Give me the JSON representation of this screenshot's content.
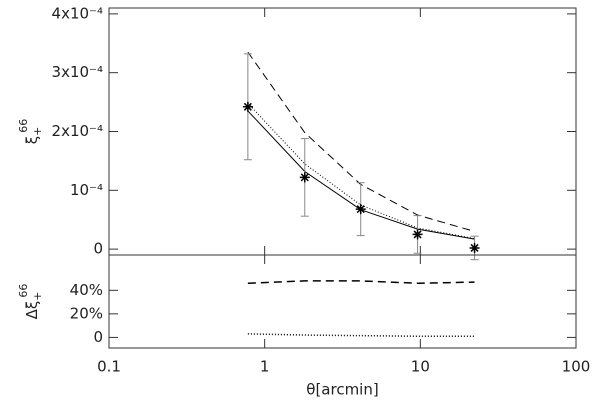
{
  "chart_data": [
    {
      "type": "errorbar-line",
      "log_x": true,
      "ylabel": {
        "symbol": "ξ",
        "sub": "+",
        "sup": "66"
      },
      "xlim": [
        0.1,
        100
      ],
      "xticks": [
        0.1,
        1,
        10,
        100
      ],
      "ylim": [
        -1e-05,
        0.00041
      ],
      "yticks": [
        0,
        {
          "value": 0.0001,
          "label": "10⁻⁴"
        },
        {
          "value": 0.0002,
          "label": "2x10⁻⁴"
        },
        {
          "value": 0.0003,
          "label": "3x10⁻⁴"
        },
        {
          "value": 0.0004,
          "label": "4x10⁻⁴"
        }
      ],
      "x": [
        0.78,
        1.81,
        4.14,
        9.6,
        22.3
      ],
      "points": {
        "color": "#000000",
        "values": [
          0.000242,
          0.000122,
          6.8e-05,
          2.5e-05,
          2e-06
        ],
        "errors": [
          9e-05,
          6.6e-05,
          4.5e-05,
          3.2e-05,
          2e-05
        ]
      },
      "series": [
        {
          "style": "solid",
          "color": "#000000",
          "values": [
            0.000235,
            0.000132,
            6.7e-05,
            3.4e-05,
            1.7e-05
          ]
        },
        {
          "style": "dashed",
          "color": "#000000",
          "values": [
            0.000335,
            0.000198,
            0.00011,
            5.8e-05,
            3e-05
          ]
        },
        {
          "style": "dotted",
          "color": "#000000",
          "values": [
            0.000248,
            0.000145,
            7.5e-05,
            3.6e-05,
            1.8e-05
          ]
        }
      ]
    },
    {
      "type": "line",
      "log_x": true,
      "ylabel": {
        "symbol": "Δξ",
        "sub": "+",
        "sup": "66"
      },
      "xlabel": "θ[arcmin]",
      "xlim": [
        0.1,
        100
      ],
      "xticks": [
        0.1,
        1,
        10,
        100
      ],
      "ylim": [
        -9,
        70
      ],
      "yticks": [
        0,
        {
          "value": 20,
          "label": "20%"
        },
        {
          "value": 40,
          "label": "40%"
        }
      ],
      "x": [
        0.78,
        1.81,
        4.14,
        9.6,
        22.3
      ],
      "series": [
        {
          "style": "dashed",
          "color": "#000000",
          "values": [
            46,
            48,
            48,
            46,
            47
          ]
        },
        {
          "style": "dotted",
          "color": "#000000",
          "values": [
            3,
            2,
            1.5,
            1,
            1
          ]
        }
      ]
    }
  ]
}
